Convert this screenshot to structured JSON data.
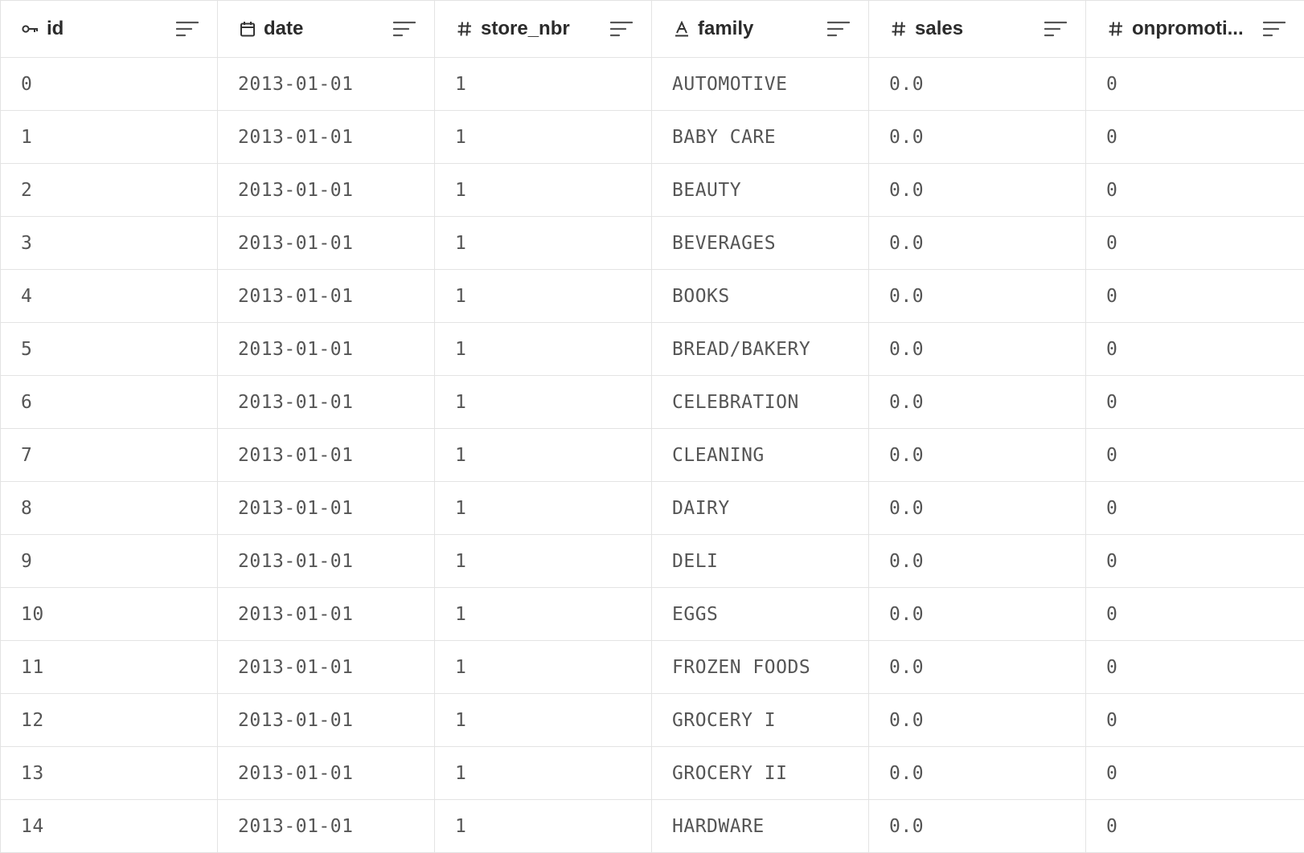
{
  "columns": [
    {
      "name": "id",
      "type_icon": "key-icon"
    },
    {
      "name": "date",
      "type_icon": "calendar-icon"
    },
    {
      "name": "store_nbr",
      "type_icon": "hash-icon"
    },
    {
      "name": "family",
      "type_icon": "text-type-icon"
    },
    {
      "name": "sales",
      "type_icon": "hash-icon"
    },
    {
      "name": "onpromoti...",
      "type_icon": "hash-icon"
    }
  ],
  "rows": [
    [
      "0",
      "2013-01-01",
      "1",
      "AUTOMOTIVE",
      "0.0",
      "0"
    ],
    [
      "1",
      "2013-01-01",
      "1",
      "BABY CARE",
      "0.0",
      "0"
    ],
    [
      "2",
      "2013-01-01",
      "1",
      "BEAUTY",
      "0.0",
      "0"
    ],
    [
      "3",
      "2013-01-01",
      "1",
      "BEVERAGES",
      "0.0",
      "0"
    ],
    [
      "4",
      "2013-01-01",
      "1",
      "BOOKS",
      "0.0",
      "0"
    ],
    [
      "5",
      "2013-01-01",
      "1",
      "BREAD/BAKERY",
      "0.0",
      "0"
    ],
    [
      "6",
      "2013-01-01",
      "1",
      "CELEBRATION",
      "0.0",
      "0"
    ],
    [
      "7",
      "2013-01-01",
      "1",
      "CLEANING",
      "0.0",
      "0"
    ],
    [
      "8",
      "2013-01-01",
      "1",
      "DAIRY",
      "0.0",
      "0"
    ],
    [
      "9",
      "2013-01-01",
      "1",
      "DELI",
      "0.0",
      "0"
    ],
    [
      "10",
      "2013-01-01",
      "1",
      "EGGS",
      "0.0",
      "0"
    ],
    [
      "11",
      "2013-01-01",
      "1",
      "FROZEN FOODS",
      "0.0",
      "0"
    ],
    [
      "12",
      "2013-01-01",
      "1",
      "GROCERY I",
      "0.0",
      "0"
    ],
    [
      "13",
      "2013-01-01",
      "1",
      "GROCERY II",
      "0.0",
      "0"
    ],
    [
      "14",
      "2013-01-01",
      "1",
      "HARDWARE",
      "0.0",
      "0"
    ]
  ],
  "colors": {
    "grid_line": "#e3e3e3",
    "header_text": "#2b2b2b",
    "cell_text": "#555555",
    "icon": "#333333"
  }
}
